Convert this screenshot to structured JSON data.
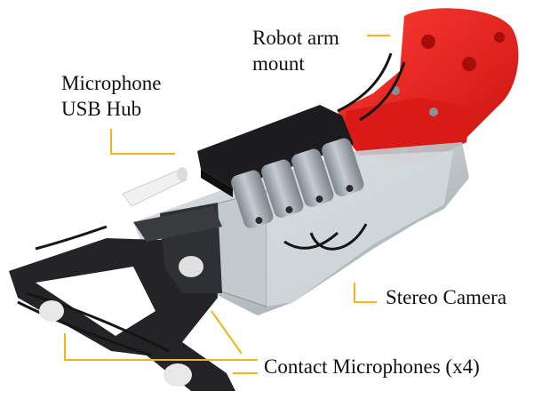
{
  "labels": {
    "robot_arm_mount": "Robot arm\nmount",
    "microphone_usb_hub": "Microphone\nUSB Hub",
    "stereo_camera": "Stereo Camera",
    "contact_microphones": "Contact Microphones (x4)"
  },
  "colors": {
    "leader_line": "#f2b416",
    "mount_red": "#e8211f",
    "acrylic": "#cfd6d8",
    "dark_frame": "#1f1f21",
    "mic_silver": "#a9b0b6",
    "hub_black": "#1c1c1e"
  }
}
